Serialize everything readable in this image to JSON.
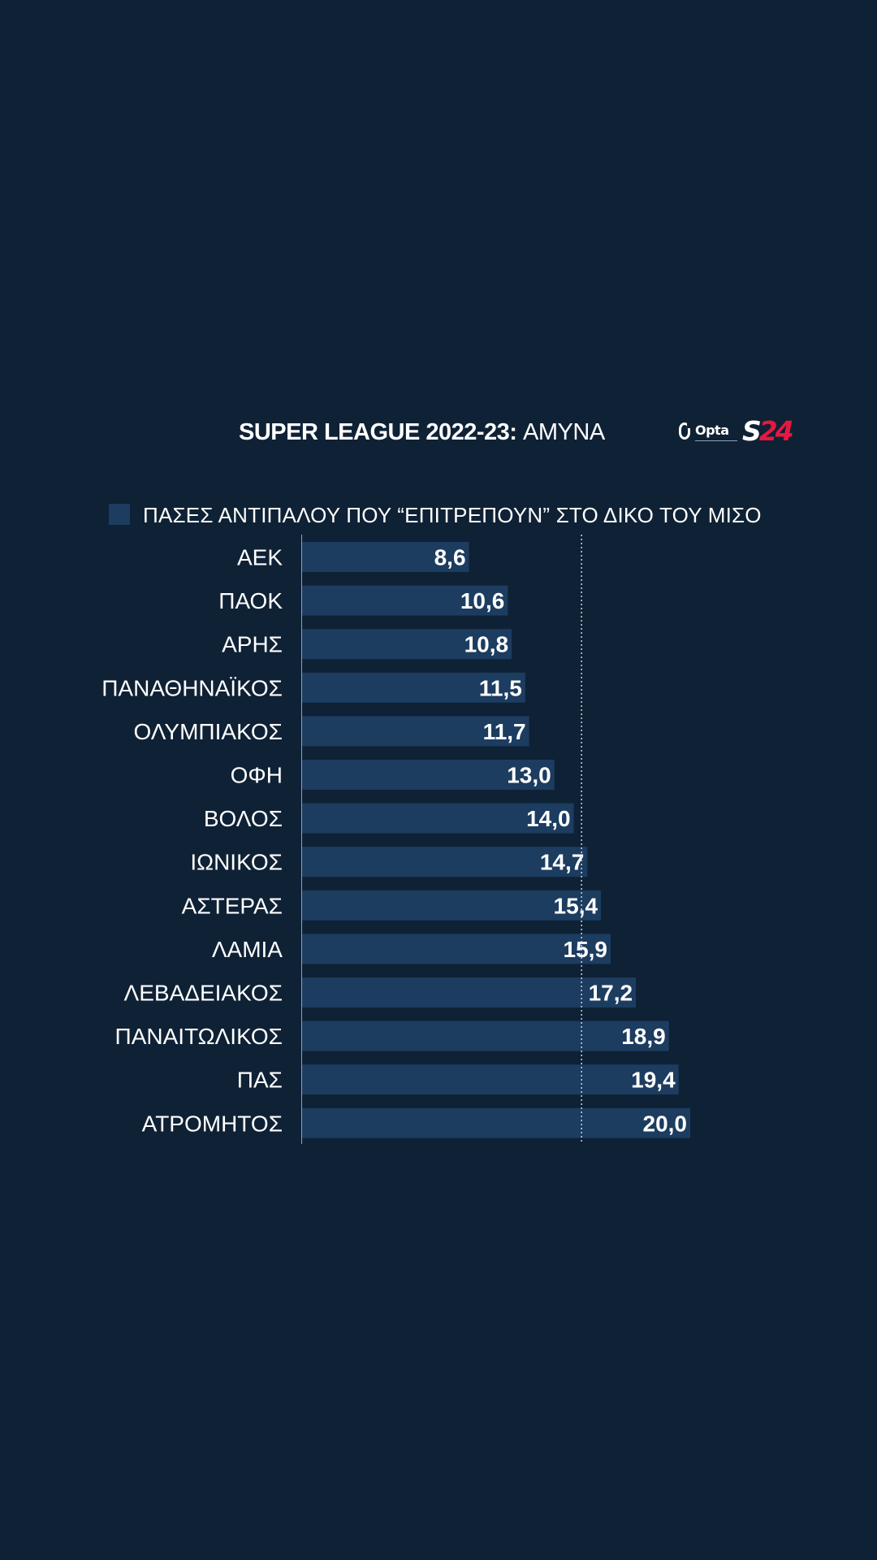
{
  "header": {
    "title_strong": "SUPER LEAGUE 2022-23:",
    "title_light": "ΑΜΥΝΑ",
    "opta_text": "Opta",
    "s24_letter": "S",
    "s24_number": "24"
  },
  "colors": {
    "background": "#0f2135",
    "bar": "#1c3c60",
    "text": "#ffffff",
    "brand_red": "#e8173f"
  },
  "chart_data": {
    "type": "bar",
    "orientation": "horizontal",
    "title": "SUPER LEAGUE 2022-23: ΑΜΥΝΑ",
    "legend": [
      "ΠΑΣΕΣ ΑΝΤΙΠΑΛΟΥ ΠΟΥ “ΕΠΙΤΡΕΠΟΥΝ” ΣΤΟ ΔΙΚΟ ΤΟΥ ΜΙΣΟ"
    ],
    "legend_position": "top",
    "categories": [
      "ΑΕΚ",
      "ΠΑΟΚ",
      "ΑΡΗΣ",
      "ΠΑΝΑΘΗΝΑΪΚΟΣ",
      "ΟΛΥΜΠΙΑΚΟΣ",
      "ΟΦΗ",
      "ΒΟΛΟΣ",
      "ΙΩΝΙΚΟΣ",
      "ΑΣΤΕΡΑΣ",
      "ΛΑΜΙΑ",
      "ΛΕΒΑΔΕΙΑΚΟΣ",
      "ΠΑΝΑΙΤΩΛΙΚΟΣ",
      "ΠΑΣ",
      "ΑΤΡΟΜΗΤΟΣ"
    ],
    "values": [
      8.6,
      10.6,
      10.8,
      11.5,
      11.7,
      13.0,
      14.0,
      14.7,
      15.4,
      15.9,
      17.2,
      18.9,
      19.4,
      20.0
    ],
    "value_labels": [
      "8,6",
      "10,6",
      "10,8",
      "11,5",
      "11,7",
      "13,0",
      "14,0",
      "14,7",
      "15,4",
      "15,9",
      "17,2",
      "18,9",
      "19,4",
      "20,0"
    ],
    "reference_line": 14.4,
    "reference_line_style": "dotted",
    "xlim": [
      0,
      20.0
    ],
    "grid": false
  }
}
